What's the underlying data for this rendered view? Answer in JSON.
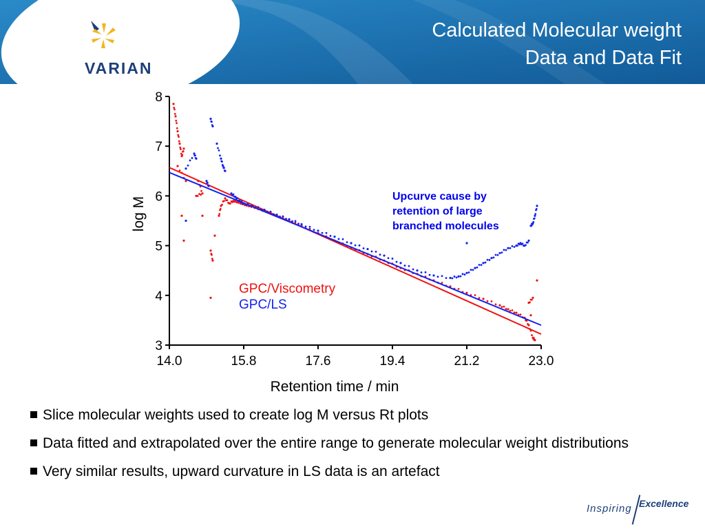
{
  "header": {
    "title_line1": "Calculated Molecular weight",
    "title_line2": "Data and Data Fit",
    "logo_text": "VARIAN",
    "bg_color": "#1a6fb0"
  },
  "chart_data": {
    "type": "scatter",
    "xlabel": "Retention time / min",
    "ylabel": "log M",
    "xlim": [
      14.0,
      23.0
    ],
    "ylim": [
      3,
      8
    ],
    "x_ticks": [
      "14.0",
      "15.8",
      "17.6",
      "19.4",
      "21.2",
      "23.0"
    ],
    "y_ticks": [
      "3",
      "4",
      "5",
      "6",
      "7",
      "8"
    ],
    "grid": false,
    "legend": [
      "GPC/Viscometry",
      "GPC/LS"
    ],
    "legend_placement": "center",
    "annotation": [
      "Upcurve cause by",
      "retention of large",
      "branched molecules"
    ],
    "series": [
      {
        "name": "GPC/Viscometry",
        "color": "#ee1111",
        "fit": [
          [
            14.0,
            6.57
          ],
          [
            23.0,
            3.22
          ]
        ],
        "points": [
          [
            14.1,
            7.85
          ],
          [
            14.15,
            7.6
          ],
          [
            14.2,
            7.3
          ],
          [
            14.25,
            7.05
          ],
          [
            14.3,
            6.8
          ],
          [
            14.35,
            6.95
          ],
          [
            14.2,
            6.6
          ],
          [
            14.4,
            6.3
          ],
          [
            14.3,
            5.6
          ],
          [
            14.35,
            5.1
          ],
          [
            14.7,
            6.3
          ],
          [
            14.8,
            6.05
          ],
          [
            14.65,
            6.0
          ],
          [
            14.8,
            5.6
          ],
          [
            15.0,
            4.9
          ],
          [
            15.05,
            4.7
          ],
          [
            15.0,
            3.95
          ],
          [
            15.1,
            5.2
          ],
          [
            15.2,
            5.6
          ],
          [
            15.25,
            5.8
          ],
          [
            15.35,
            5.95
          ],
          [
            15.45,
            5.85
          ],
          [
            15.55,
            5.9
          ],
          [
            15.65,
            5.88
          ],
          [
            15.75,
            5.85
          ],
          [
            15.85,
            5.82
          ],
          [
            15.95,
            5.8
          ],
          [
            16.1,
            5.76
          ],
          [
            16.3,
            5.7
          ],
          [
            16.6,
            5.62
          ],
          [
            16.9,
            5.5
          ],
          [
            17.2,
            5.4
          ],
          [
            17.6,
            5.25
          ],
          [
            18.0,
            5.1
          ],
          [
            18.4,
            4.96
          ],
          [
            18.8,
            4.83
          ],
          [
            19.2,
            4.7
          ],
          [
            19.6,
            4.55
          ],
          [
            20.0,
            4.43
          ],
          [
            20.4,
            4.3
          ],
          [
            20.8,
            4.18
          ],
          [
            21.2,
            4.05
          ],
          [
            21.6,
            3.93
          ],
          [
            22.0,
            3.8
          ],
          [
            22.2,
            3.72
          ],
          [
            22.4,
            3.65
          ],
          [
            22.6,
            3.55
          ],
          [
            22.7,
            3.4
          ],
          [
            22.8,
            3.15
          ],
          [
            22.85,
            3.1
          ],
          [
            22.75,
            3.6
          ],
          [
            22.8,
            3.95
          ],
          [
            22.7,
            3.85
          ],
          [
            22.9,
            4.3
          ]
        ]
      },
      {
        "name": "GPC/LS",
        "color": "#1122ee",
        "fit": [
          [
            14.0,
            6.47
          ],
          [
            23.0,
            3.4
          ]
        ],
        "points": [
          [
            15.0,
            7.55
          ],
          [
            15.05,
            7.4
          ],
          [
            15.15,
            7.05
          ],
          [
            15.25,
            6.75
          ],
          [
            15.3,
            6.6
          ],
          [
            15.35,
            6.5
          ],
          [
            14.4,
            6.55
          ],
          [
            14.6,
            6.85
          ],
          [
            14.65,
            6.75
          ],
          [
            14.9,
            6.3
          ],
          [
            14.95,
            6.2
          ],
          [
            14.4,
            5.5
          ],
          [
            15.5,
            6.05
          ],
          [
            15.6,
            5.98
          ],
          [
            15.7,
            5.9
          ],
          [
            15.8,
            5.85
          ],
          [
            16.0,
            5.8
          ],
          [
            16.3,
            5.72
          ],
          [
            16.6,
            5.62
          ],
          [
            16.9,
            5.53
          ],
          [
            17.2,
            5.43
          ],
          [
            17.6,
            5.3
          ],
          [
            18.0,
            5.18
          ],
          [
            18.4,
            5.05
          ],
          [
            18.8,
            4.93
          ],
          [
            19.2,
            4.8
          ],
          [
            19.6,
            4.65
          ],
          [
            20.0,
            4.5
          ],
          [
            20.4,
            4.4
          ],
          [
            20.8,
            4.35
          ],
          [
            21.0,
            4.38
          ],
          [
            21.2,
            4.45
          ],
          [
            21.4,
            4.55
          ],
          [
            21.6,
            4.65
          ],
          [
            21.8,
            4.75
          ],
          [
            22.0,
            4.85
          ],
          [
            22.2,
            4.95
          ],
          [
            22.4,
            5.0
          ],
          [
            22.5,
            5.05
          ],
          [
            22.6,
            5.0
          ],
          [
            22.7,
            5.1
          ],
          [
            22.75,
            5.4
          ],
          [
            22.8,
            5.45
          ],
          [
            22.85,
            5.6
          ],
          [
            22.9,
            5.8
          ],
          [
            21.2,
            5.05
          ]
        ]
      }
    ]
  },
  "bullets": [
    "Slice molecular weights used to create log M versus Rt plots",
    "Data fitted and extrapolated over the entire range to generate molecular weight distributions",
    "Very similar results, upward curvature in LS data is an artefact"
  ],
  "footer": {
    "inspiring": "Inspiring",
    "excellence": "Excellence"
  }
}
